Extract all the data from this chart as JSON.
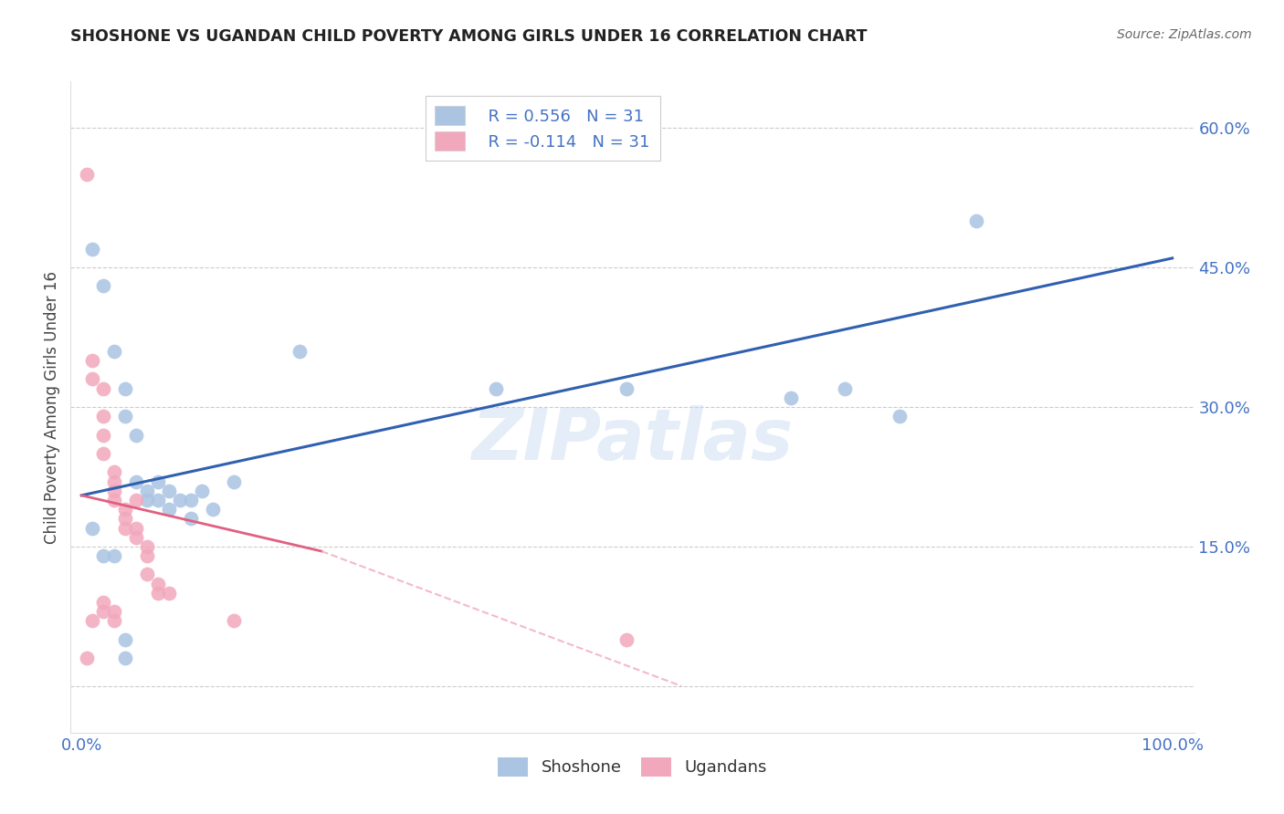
{
  "title": "SHOSHONE VS UGANDAN CHILD POVERTY AMONG GIRLS UNDER 16 CORRELATION CHART",
  "source": "Source: ZipAtlas.com",
  "ylabel": "Child Poverty Among Girls Under 16",
  "shoshone_color": "#aac4e2",
  "ugandan_color": "#f2a8bc",
  "shoshone_line_color": "#3060b0",
  "ugandan_line_solid_color": "#e06080",
  "ugandan_line_dash_color": "#f2a8bc",
  "watermark": "ZIPatlas",
  "legend_r_shoshone": "R = 0.556",
  "legend_n_shoshone": "N = 31",
  "legend_r_ugandan": "R = -0.114",
  "legend_n_ugandan": "N = 31",
  "shoshone_pts": [
    [
      0.01,
      0.47
    ],
    [
      0.02,
      0.43
    ],
    [
      0.03,
      0.36
    ],
    [
      0.04,
      0.32
    ],
    [
      0.04,
      0.29
    ],
    [
      0.05,
      0.27
    ],
    [
      0.05,
      0.22
    ],
    [
      0.06,
      0.21
    ],
    [
      0.06,
      0.2
    ],
    [
      0.07,
      0.22
    ],
    [
      0.07,
      0.2
    ],
    [
      0.08,
      0.21
    ],
    [
      0.08,
      0.19
    ],
    [
      0.09,
      0.2
    ],
    [
      0.1,
      0.2
    ],
    [
      0.1,
      0.18
    ],
    [
      0.11,
      0.21
    ],
    [
      0.12,
      0.19
    ],
    [
      0.14,
      0.22
    ],
    [
      0.2,
      0.36
    ],
    [
      0.38,
      0.32
    ],
    [
      0.5,
      0.32
    ],
    [
      0.65,
      0.31
    ],
    [
      0.7,
      0.32
    ],
    [
      0.75,
      0.29
    ],
    [
      0.82,
      0.5
    ],
    [
      0.01,
      0.17
    ],
    [
      0.02,
      0.14
    ],
    [
      0.03,
      0.14
    ],
    [
      0.04,
      0.05
    ],
    [
      0.04,
      0.03
    ]
  ],
  "ugandan_pts": [
    [
      0.005,
      0.55
    ],
    [
      0.01,
      0.35
    ],
    [
      0.01,
      0.33
    ],
    [
      0.02,
      0.32
    ],
    [
      0.02,
      0.29
    ],
    [
      0.02,
      0.27
    ],
    [
      0.02,
      0.25
    ],
    [
      0.03,
      0.23
    ],
    [
      0.03,
      0.22
    ],
    [
      0.03,
      0.21
    ],
    [
      0.03,
      0.2
    ],
    [
      0.04,
      0.19
    ],
    [
      0.04,
      0.18
    ],
    [
      0.04,
      0.17
    ],
    [
      0.05,
      0.2
    ],
    [
      0.05,
      0.17
    ],
    [
      0.05,
      0.16
    ],
    [
      0.06,
      0.15
    ],
    [
      0.06,
      0.14
    ],
    [
      0.06,
      0.12
    ],
    [
      0.07,
      0.11
    ],
    [
      0.07,
      0.1
    ],
    [
      0.08,
      0.1
    ],
    [
      0.02,
      0.09
    ],
    [
      0.02,
      0.08
    ],
    [
      0.03,
      0.08
    ],
    [
      0.03,
      0.07
    ],
    [
      0.01,
      0.07
    ],
    [
      0.14,
      0.07
    ],
    [
      0.5,
      0.05
    ],
    [
      0.005,
      0.03
    ]
  ],
  "shoshone_line": {
    "x0": 0.0,
    "y0": 0.205,
    "x1": 1.0,
    "y1": 0.46
  },
  "ugandan_line_solid": {
    "x0": 0.0,
    "y0": 0.205,
    "x1": 0.22,
    "y1": 0.145
  },
  "ugandan_line_dash": {
    "x0": 0.22,
    "y0": 0.145,
    "x1": 0.55,
    "y1": 0.0
  },
  "y_ticks": [
    0.0,
    0.15,
    0.3,
    0.45,
    0.6
  ],
  "y_tick_labels": [
    "",
    "15.0%",
    "30.0%",
    "45.0%",
    "60.0%"
  ],
  "x_ticks": [
    0.0,
    0.1,
    0.2,
    0.3,
    0.4,
    0.5,
    0.6,
    0.7,
    0.8,
    0.9,
    1.0
  ],
  "x_tick_labels": [
    "0.0%",
    "",
    "",
    "",
    "",
    "",
    "",
    "",
    "",
    "",
    "100.0%"
  ],
  "xlim": [
    -0.01,
    1.02
  ],
  "ylim": [
    -0.05,
    0.65
  ]
}
